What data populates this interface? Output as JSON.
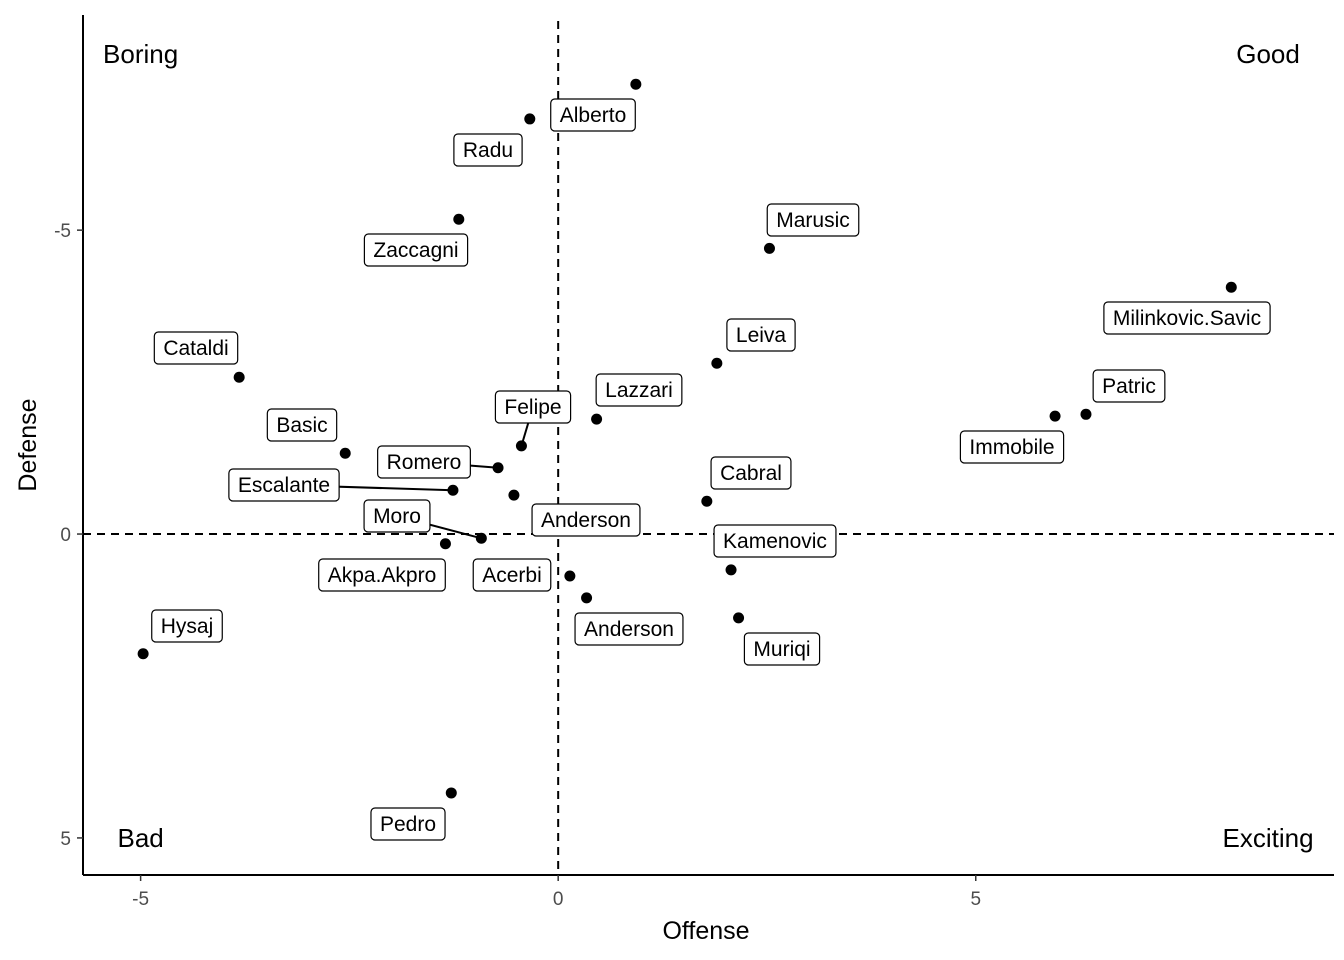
{
  "chart_data": {
    "type": "scatter",
    "title": "",
    "xlabel": "Offense",
    "ylabel": "Defense",
    "xlim": [
      -5.69,
      9.29
    ],
    "ylim": [
      -8.54,
      5.61
    ],
    "y_reversed": true,
    "grid": false,
    "xticks": [
      -5,
      0,
      5
    ],
    "yticks": [
      -5,
      0,
      5
    ],
    "xtick_labels": [
      "-5",
      "0",
      "5"
    ],
    "ytick_labels": [
      "-5",
      "0",
      "5"
    ],
    "reference_lines": {
      "x": 0,
      "y": 0,
      "style": "dashed"
    },
    "quadrant_labels": [
      {
        "text": "Boring",
        "x": -5,
        "y": -7.9
      },
      {
        "text": "Good",
        "x": 8.5,
        "y": -7.9
      },
      {
        "text": "Bad",
        "x": -5,
        "y": 5
      },
      {
        "text": "Exciting",
        "x": 8.5,
        "y": 5
      }
    ],
    "points": [
      {
        "name": "Alberto",
        "x": 0.93,
        "y": -7.4
      },
      {
        "name": "Radu",
        "x": -0.34,
        "y": -6.83
      },
      {
        "name": "Zaccagni",
        "x": -1.19,
        "y": -5.18
      },
      {
        "name": "Marusic",
        "x": 2.53,
        "y": -4.7
      },
      {
        "name": "Milinkovic.Savic",
        "x": 8.06,
        "y": -4.06
      },
      {
        "name": "Leiva",
        "x": 1.9,
        "y": -2.81
      },
      {
        "name": "Cataldi",
        "x": -3.82,
        "y": -2.58
      },
      {
        "name": "Lazzari",
        "x": 0.46,
        "y": -1.89
      },
      {
        "name": "Patric",
        "x": 6.32,
        "y": -1.97
      },
      {
        "name": "Immobile",
        "x": 5.95,
        "y": -1.94
      },
      {
        "name": "Felipe",
        "x": -0.44,
        "y": -1.45
      },
      {
        "name": "Basic",
        "x": -2.55,
        "y": -1.33
      },
      {
        "name": "Romero",
        "x": -0.72,
        "y": -1.09
      },
      {
        "name": "Escalante",
        "x": -1.26,
        "y": -0.72
      },
      {
        "name": "Anderson",
        "x": -0.53,
        "y": -0.64
      },
      {
        "name": "Cabral",
        "x": 1.78,
        "y": -0.54
      },
      {
        "name": "Moro",
        "x": -0.92,
        "y": 0.07
      },
      {
        "name": "Akpa.Akpro",
        "x": -1.35,
        "y": 0.16
      },
      {
        "name": "Kamenovic",
        "x": 2.07,
        "y": 0.59
      },
      {
        "name": "Acerbi",
        "x": 0.14,
        "y": 0.69
      },
      {
        "name": "Anderson",
        "x": 0.34,
        "y": 1.05
      },
      {
        "name": "Muriqi",
        "x": 2.16,
        "y": 1.38
      },
      {
        "name": "Hysaj",
        "x": -4.97,
        "y": 1.97
      },
      {
        "name": "Pedro",
        "x": -1.28,
        "y": 4.26
      }
    ]
  }
}
